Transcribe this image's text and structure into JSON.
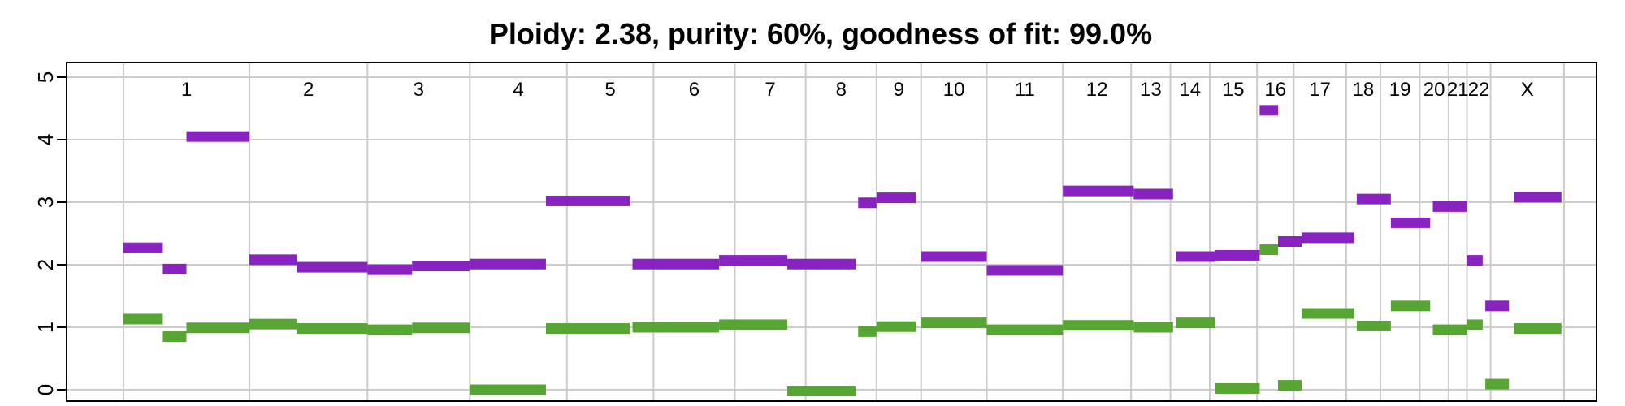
{
  "chart_data": {
    "type": "segment-plot",
    "title": "Ploidy: 2.38, purity: 60%, goodness of fit: 99.0%",
    "ylim": [
      -0.2,
      5.1
    ],
    "y_ticks": [
      "0",
      "1",
      "2",
      "3",
      "4",
      "5"
    ],
    "grid": true,
    "colors": {
      "total": "#8823bf",
      "minor": "#57a533"
    },
    "chromosomes": [
      {
        "label": "1",
        "start": 0,
        "end": 4.8
      },
      {
        "label": "2",
        "start": 4.8,
        "end": 9.3
      },
      {
        "label": "3",
        "start": 9.3,
        "end": 13.2
      },
      {
        "label": "4",
        "start": 13.2,
        "end": 16.9
      },
      {
        "label": "5",
        "start": 16.9,
        "end": 20.2
      },
      {
        "label": "6",
        "start": 20.2,
        "end": 23.3
      },
      {
        "label": "7",
        "start": 23.3,
        "end": 26.0
      },
      {
        "label": "8",
        "start": 26.0,
        "end": 28.7
      },
      {
        "label": "9",
        "start": 28.7,
        "end": 30.4
      },
      {
        "label": "10",
        "start": 30.4,
        "end": 32.9
      },
      {
        "label": "11",
        "start": 32.9,
        "end": 35.8
      },
      {
        "label": "12",
        "start": 35.8,
        "end": 38.4
      },
      {
        "label": "13",
        "start": 38.4,
        "end": 39.9
      },
      {
        "label": "14",
        "start": 39.9,
        "end": 41.4
      },
      {
        "label": "15",
        "start": 41.4,
        "end": 43.2
      },
      {
        "label": "16",
        "start": 43.2,
        "end": 44.6
      },
      {
        "label": "17",
        "start": 44.6,
        "end": 46.6
      },
      {
        "label": "18",
        "start": 46.6,
        "end": 47.9
      },
      {
        "label": "19",
        "start": 47.9,
        "end": 49.4
      },
      {
        "label": "20",
        "start": 49.4,
        "end": 50.5
      },
      {
        "label": "21",
        "start": 50.5,
        "end": 51.2
      },
      {
        "label": "22",
        "start": 51.2,
        "end": 52.1
      },
      {
        "label": "X",
        "start": 52.1,
        "end": 54.9
      }
    ],
    "series": [
      {
        "key": "total",
        "segments": [
          {
            "x0": 0.0,
            "x1": 1.5,
            "y": 2.27
          },
          {
            "x0": 1.5,
            "x1": 2.4,
            "y": 1.93
          },
          {
            "x0": 2.4,
            "x1": 4.8,
            "y": 4.05
          },
          {
            "x0": 4.8,
            "x1": 6.6,
            "y": 2.08
          },
          {
            "x0": 6.6,
            "x1": 9.3,
            "y": 1.96
          },
          {
            "x0": 9.3,
            "x1": 11.0,
            "y": 1.92
          },
          {
            "x0": 11.0,
            "x1": 13.2,
            "y": 1.98
          },
          {
            "x0": 13.2,
            "x1": 16.1,
            "y": 2.01
          },
          {
            "x0": 16.1,
            "x1": 19.3,
            "y": 3.02
          },
          {
            "x0": 19.4,
            "x1": 22.7,
            "y": 2.01
          },
          {
            "x0": 22.7,
            "x1": 25.3,
            "y": 2.07
          },
          {
            "x0": 25.3,
            "x1": 27.9,
            "y": 2.01
          },
          {
            "x0": 28.0,
            "x1": 28.7,
            "y": 2.99
          },
          {
            "x0": 28.7,
            "x1": 30.2,
            "y": 3.07
          },
          {
            "x0": 30.4,
            "x1": 32.9,
            "y": 2.13
          },
          {
            "x0": 32.9,
            "x1": 35.8,
            "y": 1.91
          },
          {
            "x0": 35.8,
            "x1": 38.5,
            "y": 3.18
          },
          {
            "x0": 38.5,
            "x1": 40.0,
            "y": 3.13
          },
          {
            "x0": 40.1,
            "x1": 41.6,
            "y": 2.13
          },
          {
            "x0": 41.6,
            "x1": 43.3,
            "y": 2.15
          },
          {
            "x0": 43.3,
            "x1": 44.0,
            "y": 4.47
          },
          {
            "x0": 44.0,
            "x1": 44.9,
            "y": 2.37
          },
          {
            "x0": 44.9,
            "x1": 46.9,
            "y": 2.43
          },
          {
            "x0": 47.0,
            "x1": 48.3,
            "y": 3.05
          },
          {
            "x0": 48.3,
            "x1": 49.8,
            "y": 2.67
          },
          {
            "x0": 49.9,
            "x1": 51.2,
            "y": 2.93
          },
          {
            "x0": 51.2,
            "x1": 51.8,
            "y": 2.07
          },
          {
            "x0": 51.9,
            "x1": 52.8,
            "y": 1.34
          },
          {
            "x0": 53.0,
            "x1": 54.8,
            "y": 3.08
          }
        ]
      },
      {
        "key": "minor",
        "segments": [
          {
            "x0": 0.0,
            "x1": 1.5,
            "y": 1.13
          },
          {
            "x0": 1.5,
            "x1": 2.4,
            "y": 0.85
          },
          {
            "x0": 2.4,
            "x1": 4.8,
            "y": 0.99
          },
          {
            "x0": 4.8,
            "x1": 6.6,
            "y": 1.05
          },
          {
            "x0": 6.6,
            "x1": 9.3,
            "y": 0.98
          },
          {
            "x0": 9.3,
            "x1": 11.0,
            "y": 0.96
          },
          {
            "x0": 11.0,
            "x1": 13.2,
            "y": 0.99
          },
          {
            "x0": 13.2,
            "x1": 16.1,
            "y": 0.0
          },
          {
            "x0": 16.1,
            "x1": 19.3,
            "y": 0.98
          },
          {
            "x0": 19.4,
            "x1": 22.7,
            "y": 1.0
          },
          {
            "x0": 22.7,
            "x1": 25.3,
            "y": 1.04
          },
          {
            "x0": 25.3,
            "x1": 27.9,
            "y": -0.02
          },
          {
            "x0": 28.0,
            "x1": 28.7,
            "y": 0.93
          },
          {
            "x0": 28.7,
            "x1": 30.2,
            "y": 1.01
          },
          {
            "x0": 30.4,
            "x1": 32.9,
            "y": 1.07
          },
          {
            "x0": 32.9,
            "x1": 35.8,
            "y": 0.96
          },
          {
            "x0": 35.8,
            "x1": 38.5,
            "y": 1.03
          },
          {
            "x0": 38.5,
            "x1": 40.0,
            "y": 1.0
          },
          {
            "x0": 40.1,
            "x1": 41.6,
            "y": 1.07
          },
          {
            "x0": 41.6,
            "x1": 43.3,
            "y": 0.02
          },
          {
            "x0": 43.3,
            "x1": 44.0,
            "y": 2.24
          },
          {
            "x0": 44.0,
            "x1": 44.9,
            "y": 0.07
          },
          {
            "x0": 44.9,
            "x1": 46.9,
            "y": 1.22
          },
          {
            "x0": 47.0,
            "x1": 48.3,
            "y": 1.02
          },
          {
            "x0": 48.3,
            "x1": 49.8,
            "y": 1.34
          },
          {
            "x0": 49.9,
            "x1": 51.2,
            "y": 0.96
          },
          {
            "x0": 51.2,
            "x1": 51.8,
            "y": 1.04
          },
          {
            "x0": 51.9,
            "x1": 52.8,
            "y": 0.09
          },
          {
            "x0": 53.0,
            "x1": 54.8,
            "y": 0.98
          }
        ]
      }
    ]
  }
}
